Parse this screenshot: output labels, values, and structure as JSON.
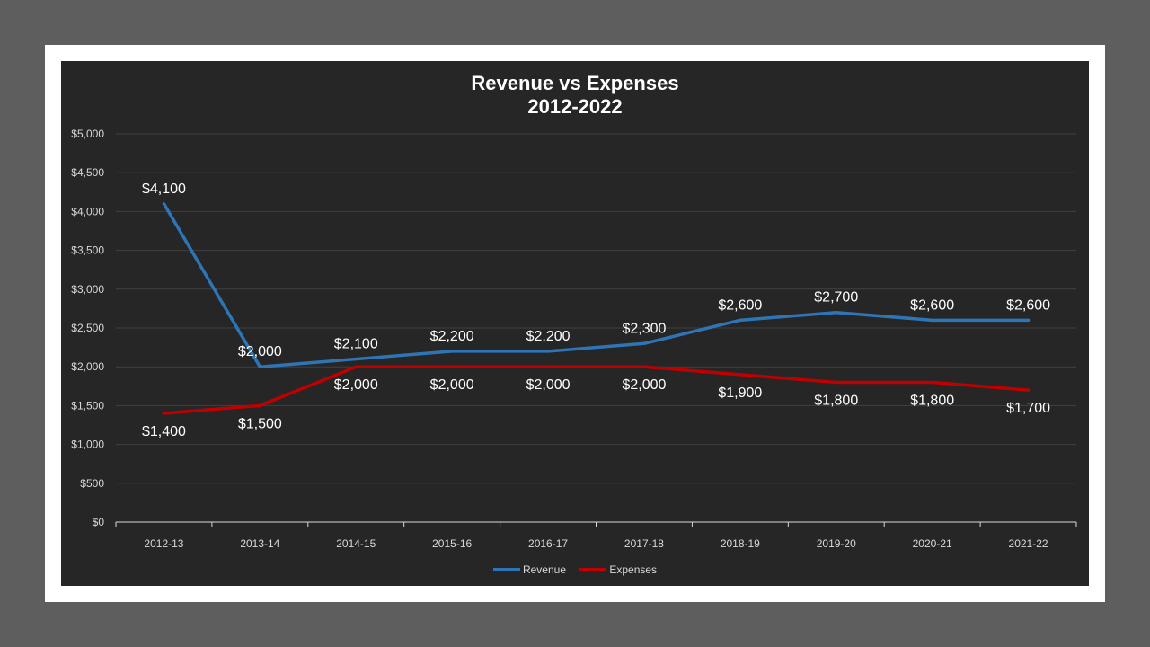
{
  "chart_data": {
    "type": "line",
    "title": "Revenue vs Expenses",
    "subtitle": "2012-2022",
    "xlabel": "",
    "ylabel": "",
    "categories": [
      "2012-13",
      "2013-14",
      "2014-15",
      "2015-16",
      "2016-17",
      "2017-18",
      "2018-19",
      "2019-20",
      "2020-21",
      "2021-22"
    ],
    "ylim": [
      0,
      5000
    ],
    "yticks": [
      0,
      500,
      1000,
      1500,
      2000,
      2500,
      3000,
      3500,
      4000,
      4500,
      5000
    ],
    "ytick_labels": [
      "$0",
      "$500",
      "$1,000",
      "$1,500",
      "$2,000",
      "$2,500",
      "$3,000",
      "$3,500",
      "$4,000",
      "$4,500",
      "$5,000"
    ],
    "grid": true,
    "legend_position": "bottom",
    "series": [
      {
        "name": "Revenue",
        "color": "#2e75b6",
        "values": [
          4100,
          2000,
          2100,
          2200,
          2200,
          2300,
          2600,
          2700,
          2600,
          2600
        ],
        "labels": [
          "$4,100",
          "$2,000",
          "$2,100",
          "$2,200",
          "$2,200",
          "$2,300",
          "$2,600",
          "$2,700",
          "$2,600",
          "$2,600"
        ],
        "label_position": "above"
      },
      {
        "name": "Expenses",
        "color": "#c00000",
        "values": [
          1400,
          1500,
          2000,
          2000,
          2000,
          2000,
          1900,
          1800,
          1800,
          1700
        ],
        "labels": [
          "$1,400",
          "$1,500",
          "$2,000",
          "$2,000",
          "$2,000",
          "$2,000",
          "$1,900",
          "$1,800",
          "$1,800",
          "$1,700"
        ],
        "label_position": "below"
      }
    ]
  }
}
